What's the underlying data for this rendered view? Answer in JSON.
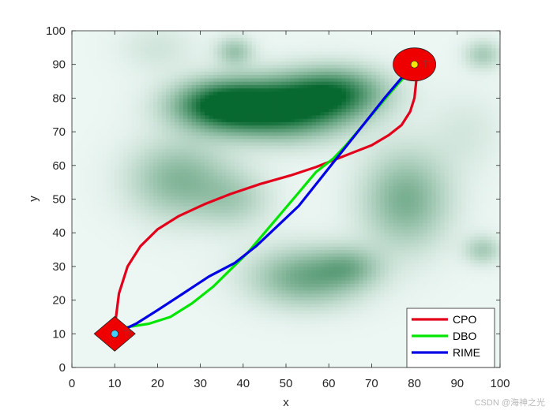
{
  "chart_data": {
    "type": "line",
    "title": "",
    "xlabel": "x",
    "ylabel": "y",
    "xlim": [
      0,
      100
    ],
    "ylim": [
      0,
      100
    ],
    "xticks": [
      0,
      10,
      20,
      30,
      40,
      50,
      60,
      70,
      80,
      90,
      100
    ],
    "yticks": [
      0,
      10,
      20,
      30,
      40,
      50,
      60,
      70,
      80,
      90,
      100
    ],
    "grid": false,
    "legend_position": "bottom-right",
    "background": "terrain heat map (white to green)",
    "terrain_peaks": [
      {
        "x": 35,
        "y": 78,
        "sx": 8,
        "sy": 5,
        "h": 1.0
      },
      {
        "x": 50,
        "y": 77,
        "sx": 10,
        "sy": 6,
        "h": 1.0
      },
      {
        "x": 62,
        "y": 82,
        "sx": 8,
        "sy": 5,
        "h": 0.7
      },
      {
        "x": 25,
        "y": 56,
        "sx": 8,
        "sy": 8,
        "h": 0.45
      },
      {
        "x": 38,
        "y": 50,
        "sx": 6,
        "sy": 6,
        "h": 0.25
      },
      {
        "x": 55,
        "y": 27,
        "sx": 9,
        "sy": 6,
        "h": 0.55
      },
      {
        "x": 65,
        "y": 30,
        "sx": 5,
        "sy": 4,
        "h": 0.3
      },
      {
        "x": 78,
        "y": 50,
        "sx": 7,
        "sy": 10,
        "h": 0.5
      },
      {
        "x": 38,
        "y": 94,
        "sx": 3,
        "sy": 3,
        "h": 0.35
      },
      {
        "x": 96,
        "y": 93,
        "sx": 3,
        "sy": 3,
        "h": 0.3
      },
      {
        "x": 96,
        "y": 35,
        "sx": 3,
        "sy": 3,
        "h": 0.3
      },
      {
        "x": 20,
        "y": 95,
        "sx": 6,
        "sy": 5,
        "h": 0.12
      },
      {
        "x": 92,
        "y": 70,
        "sx": 6,
        "sy": 8,
        "h": 0.1
      }
    ],
    "start": {
      "x": 10,
      "y": 10
    },
    "goal": {
      "x": 80,
      "y": 90
    },
    "series": [
      {
        "name": "CPO",
        "color": "#e3001b",
        "x": [
          10,
          10.2,
          11,
          13,
          16,
          20,
          25,
          31,
          37,
          44,
          51,
          57,
          62,
          66,
          70,
          74,
          77,
          79,
          80,
          80.5,
          80
        ],
        "y": [
          10,
          14,
          22,
          30,
          36,
          41,
          45,
          48.5,
          51.5,
          54.5,
          57,
          59.5,
          62,
          64,
          66,
          69,
          72,
          76,
          80,
          86,
          90
        ]
      },
      {
        "name": "DBO",
        "color": "#00e600",
        "x": [
          10,
          13,
          18,
          23,
          28,
          33,
          37,
          41,
          45,
          49,
          53,
          57,
          61,
          64,
          68,
          72,
          76,
          79,
          80
        ],
        "y": [
          10,
          12,
          13,
          15,
          19,
          24,
          29,
          34,
          40,
          46,
          52,
          58,
          62,
          66,
          72,
          78,
          84,
          88,
          90
        ]
      },
      {
        "name": "RIME",
        "color": "#0000e6",
        "x": [
          10,
          15,
          20,
          26,
          32,
          38,
          43,
          48,
          53,
          58,
          63,
          68,
          73,
          77,
          80
        ],
        "y": [
          10,
          13,
          17,
          22,
          27,
          31,
          36,
          42,
          48,
          56,
          64,
          72,
          80,
          86,
          90
        ]
      }
    ]
  },
  "watermark": "CSDN @海神之光"
}
